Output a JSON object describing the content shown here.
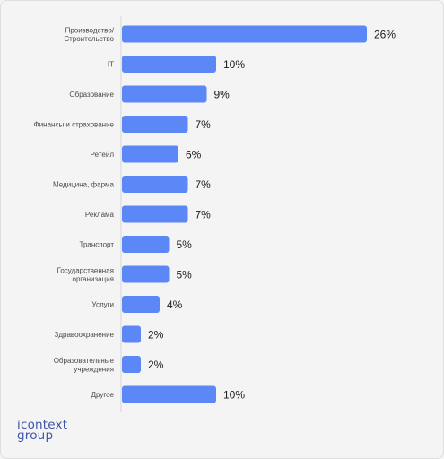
{
  "chart_data": {
    "type": "bar",
    "orientation": "horizontal",
    "title": "",
    "xlabel": "",
    "ylabel": "",
    "categories": [
      [
        "Производство/",
        "Строительство"
      ],
      [
        "IT"
      ],
      [
        "Образование"
      ],
      [
        "Финансы и страхование"
      ],
      [
        "Ретейл"
      ],
      [
        "Медицина, фарма"
      ],
      [
        "Реклама"
      ],
      [
        "Транспорт"
      ],
      [
        "Государственная",
        "организация"
      ],
      [
        "Услуги"
      ],
      [
        "Здравоохранение"
      ],
      [
        "Образовательные",
        "учреждения"
      ],
      [
        "Другое"
      ]
    ],
    "values": [
      26,
      10,
      9,
      7,
      6,
      7,
      7,
      5,
      5,
      4,
      2,
      2,
      10
    ],
    "value_labels": [
      "26%",
      "10%",
      "9%",
      "7%",
      "6%",
      "7%",
      "7%",
      "5%",
      "5%",
      "4%",
      "2%",
      "2%",
      "10%"
    ],
    "xlim": [
      0,
      26
    ],
    "bar_color": "#5b87f7",
    "grid": false,
    "legend": "none"
  },
  "logo": {
    "line1": "icontext",
    "line2": "group",
    "color": "#3e53a8"
  }
}
